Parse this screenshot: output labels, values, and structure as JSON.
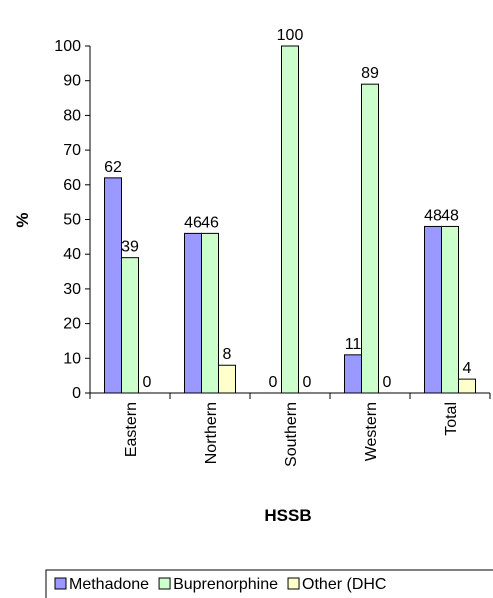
{
  "chart_data": {
    "type": "bar",
    "xlabel": "HSSB",
    "ylabel": "%",
    "ylim": [
      0,
      100
    ],
    "yticks": [
      0,
      10,
      20,
      30,
      40,
      50,
      60,
      70,
      80,
      90,
      100
    ],
    "categories": [
      "Eastern",
      "Northern",
      "Southern",
      "Western",
      "Total"
    ],
    "series": [
      {
        "name": "Methadone",
        "values": [
          62,
          46,
          0,
          11,
          48
        ],
        "color": "#9999ff"
      },
      {
        "name": "Buprenorphine",
        "values": [
          39,
          46,
          100,
          89,
          48
        ],
        "color": "#ccffcc"
      },
      {
        "name": "Other (DHC",
        "values": [
          0,
          8,
          0,
          0,
          4
        ],
        "color": "#ffffcc"
      }
    ],
    "grid": false,
    "legend_position": "bottom"
  }
}
